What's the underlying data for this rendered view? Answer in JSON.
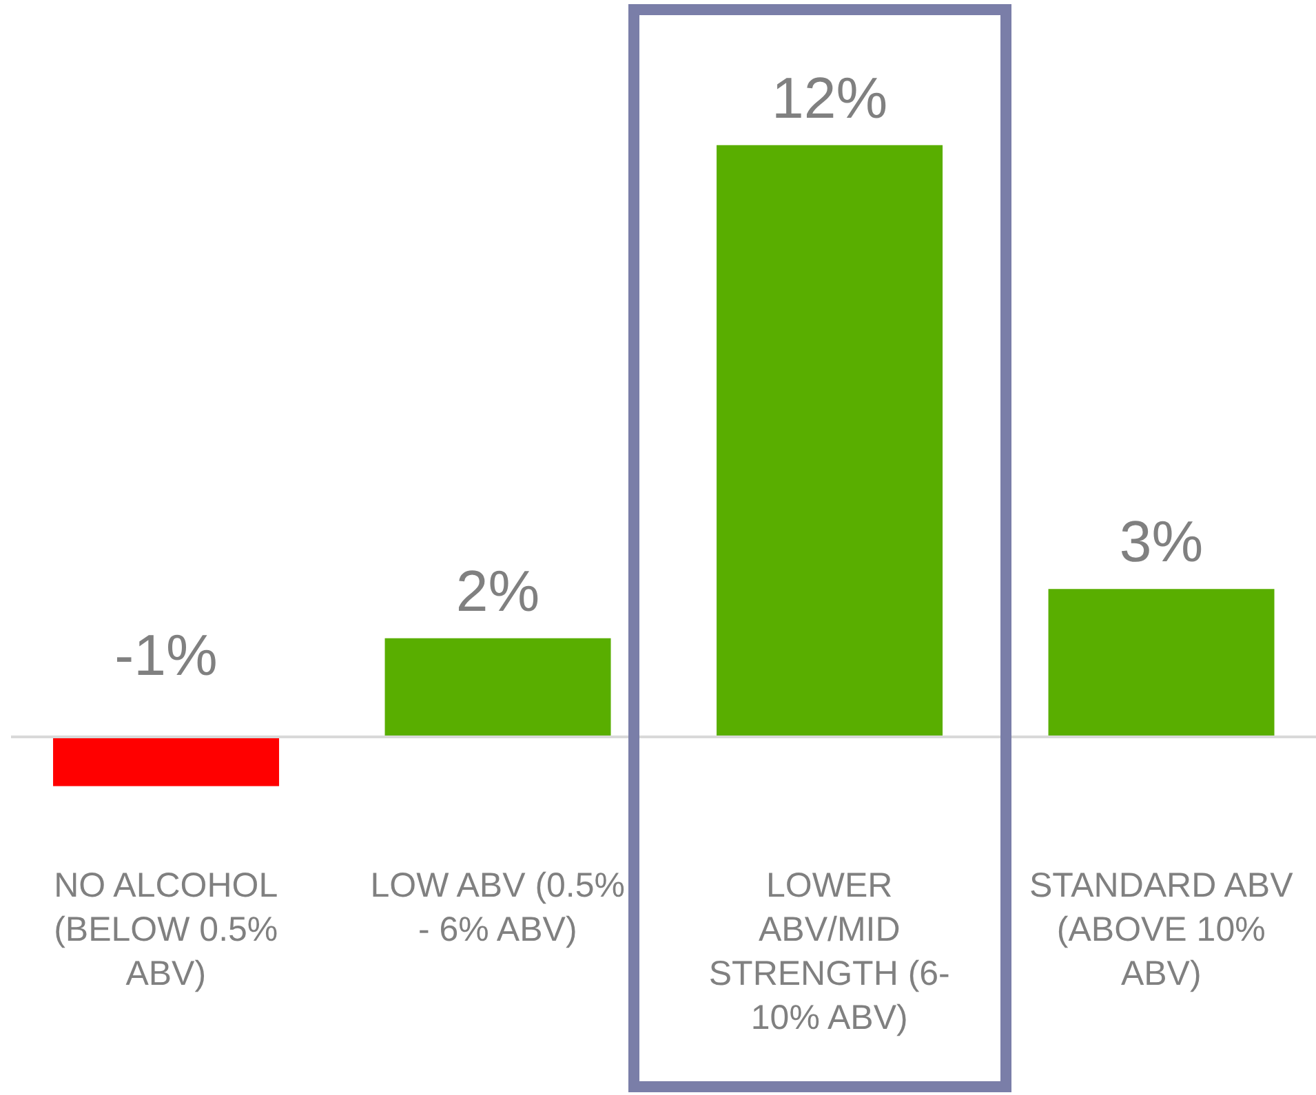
{
  "chart_data": {
    "type": "bar",
    "categories": [
      "NO ALCOHOL (BELOW 0.5% ABV)",
      "LOW ABV (0.5% - 6% ABV)",
      "LOWER ABV/MID STRENGTH (6-10% ABV)",
      "STANDARD ABV (ABOVE 10% ABV)"
    ],
    "values": [
      -1,
      2,
      12,
      3
    ],
    "colors": [
      "#ff0000",
      "#59ae00",
      "#59ae00",
      "#59ae00"
    ],
    "value_labels": [
      "-1%",
      "2%",
      "12%",
      "3%"
    ]
  }
}
